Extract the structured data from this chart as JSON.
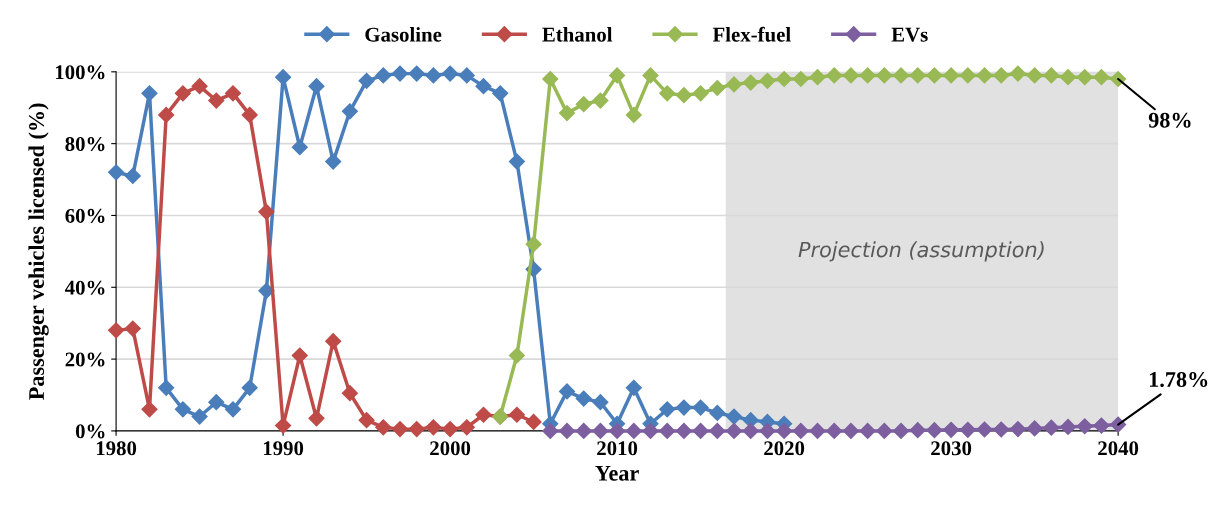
{
  "chart_data": {
    "type": "line",
    "xlabel": "Year",
    "ylabel": "Passenger vehicles licensed (%)",
    "x": [
      1980,
      1981,
      1982,
      1983,
      1984,
      1985,
      1986,
      1987,
      1988,
      1989,
      1990,
      1991,
      1992,
      1993,
      1994,
      1995,
      1996,
      1997,
      1998,
      1999,
      2000,
      2001,
      2002,
      2003,
      2004,
      2005,
      2006,
      2007,
      2008,
      2009,
      2010,
      2011,
      2012,
      2013,
      2014,
      2015,
      2016,
      2017,
      2018,
      2019,
      2020,
      2021,
      2022,
      2023,
      2024,
      2025,
      2026,
      2027,
      2028,
      2029,
      2030,
      2031,
      2032,
      2033,
      2034,
      2035,
      2036,
      2037,
      2038,
      2039,
      2040
    ],
    "series": [
      {
        "name": "Gasoline",
        "color": "#4a7ebb",
        "values": [
          72,
          71,
          94,
          12,
          6,
          4,
          8,
          6,
          12,
          39,
          98.5,
          79,
          96,
          75,
          89,
          97.5,
          99,
          99.5,
          99.5,
          99,
          99.5,
          99,
          96,
          94,
          75,
          45,
          2,
          11,
          9,
          8,
          2,
          12,
          2,
          6,
          6.5,
          6.5,
          5,
          4,
          3,
          2.5,
          2,
          null,
          null,
          null,
          null,
          null,
          null,
          null,
          null,
          null,
          null,
          null,
          null,
          null,
          null,
          null,
          null,
          null,
          null,
          null,
          null
        ]
      },
      {
        "name": "Ethanol",
        "color": "#be4b48",
        "values": [
          28,
          28.5,
          6,
          88,
          94,
          96,
          92,
          94,
          88,
          61,
          1.5,
          21,
          3.5,
          25,
          10.5,
          3,
          1,
          0.5,
          0.5,
          1,
          0.5,
          1,
          4.5,
          4,
          4.5,
          2.5,
          null,
          null,
          null,
          null,
          null,
          null,
          null,
          null,
          null,
          null,
          null,
          null,
          null,
          null,
          null,
          null,
          null,
          null,
          null,
          null,
          null,
          null,
          null,
          null,
          null,
          null,
          null,
          null,
          null,
          null,
          null,
          null,
          null,
          null,
          null
        ]
      },
      {
        "name": "Flex-fuel",
        "color": "#98b954",
        "values": [
          null,
          null,
          null,
          null,
          null,
          null,
          null,
          null,
          null,
          null,
          null,
          null,
          null,
          null,
          null,
          null,
          null,
          null,
          null,
          null,
          null,
          null,
          null,
          4,
          21,
          52,
          98,
          88.5,
          91,
          92,
          99,
          88,
          99,
          94,
          93.5,
          94,
          95.5,
          96.5,
          97,
          97.5,
          98,
          98,
          98.5,
          99,
          99,
          99,
          99,
          99,
          99,
          99,
          99,
          99,
          99,
          99,
          99.5,
          99,
          99,
          98.5,
          98.5,
          98.5,
          98
        ]
      },
      {
        "name": "EVs",
        "color": "#7d5fa0",
        "values": [
          null,
          null,
          null,
          null,
          null,
          null,
          null,
          null,
          null,
          null,
          null,
          null,
          null,
          null,
          null,
          null,
          null,
          null,
          null,
          null,
          null,
          null,
          null,
          null,
          null,
          null,
          0,
          0,
          0,
          0,
          0,
          0,
          0,
          0,
          0,
          0,
          0,
          0,
          0,
          0,
          0,
          0,
          0,
          0,
          0,
          0,
          0,
          0,
          0.2,
          0.2,
          0.3,
          0.3,
          0.4,
          0.4,
          0.5,
          0.7,
          0.9,
          1.1,
          1.3,
          1.5,
          1.78
        ]
      }
    ],
    "xlim": [
      1980,
      2040
    ],
    "xticks": [
      1980,
      1990,
      2000,
      2010,
      2020,
      2030,
      2040
    ],
    "ylim": [
      0,
      100
    ],
    "yticks": [
      {
        "value": 0,
        "label": "0%"
      },
      {
        "value": 20,
        "label": "20%"
      },
      {
        "value": 40,
        "label": "40%"
      },
      {
        "value": 60,
        "label": "60%"
      },
      {
        "value": 80,
        "label": "80%"
      },
      {
        "value": 100,
        "label": "100%"
      }
    ],
    "grid": "y",
    "legend": "top",
    "marker": "diamond",
    "line_style": "solid",
    "bands": [
      {
        "axis": "x",
        "from": 2016.5,
        "to": 2040,
        "label": "Projection (assumption)",
        "color": "#d9d9d9"
      }
    ],
    "annotations": [
      {
        "text": "98%",
        "x": 2040,
        "y": 98
      },
      {
        "text": "1.78%",
        "x": 2040,
        "y": 1.78
      }
    ]
  }
}
